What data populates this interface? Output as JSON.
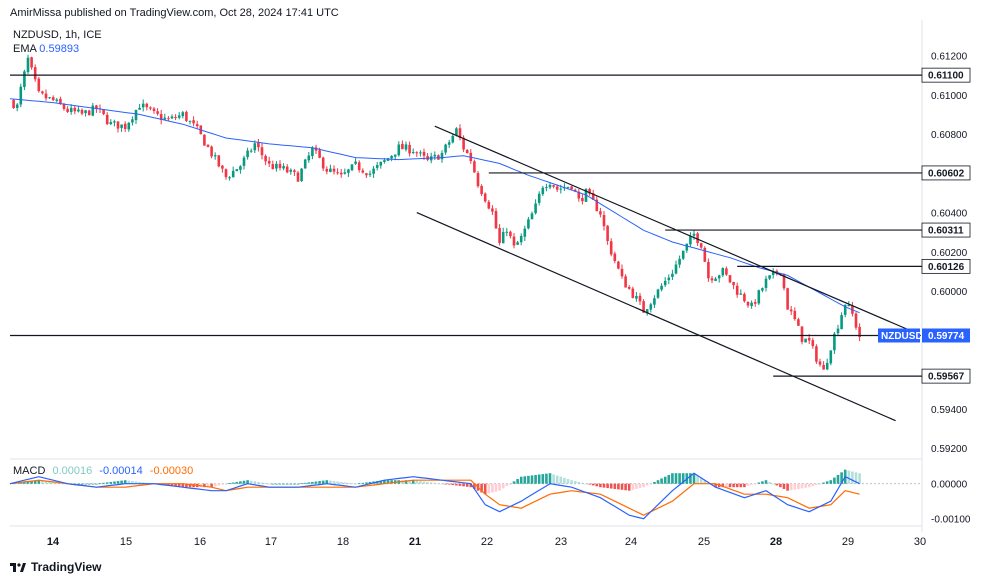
{
  "header": {
    "text": "AmirMissa published on TradingView.com, Oct 28, 2024 17:41 UTC"
  },
  "legend": {
    "symbol": "NZDUSD, 1h, ICE",
    "ema_label": "EMA",
    "ema_value": "0.59893"
  },
  "macd_legend": {
    "label": "MACD",
    "hist": "0.00016",
    "macd": "-0.00014",
    "signal": "-0.00030"
  },
  "footer": {
    "brand": "TradingView"
  },
  "colors": {
    "up": "#089981",
    "down": "#f23645",
    "ema": "#2962ff",
    "macd": "#2962ff",
    "signal": "#ff6d00",
    "hist_up": "#26a69a",
    "hist_down": "#ef5350"
  },
  "chart_data": {
    "type": "candlestick",
    "symbol": "NZDUSD",
    "timeframe": "1h",
    "x_ticks": [
      "14",
      "15",
      "16",
      "17",
      "18",
      "21",
      "22",
      "23",
      "24",
      "25",
      "28",
      "29",
      "30"
    ],
    "bold_ticks": [
      "14",
      "21",
      "28"
    ],
    "y_ticks": [
      "0.61200",
      "0.61000",
      "0.60800",
      "0.60400",
      "0.60200",
      "0.60000",
      "0.59400",
      "0.59200"
    ],
    "ylim": [
      0.5915,
      0.6133
    ],
    "price_path": [
      [
        0,
        0.6097
      ],
      [
        2,
        0.6094
      ],
      [
        3,
        0.6103
      ],
      [
        5,
        0.6118
      ],
      [
        6,
        0.6112
      ],
      [
        8,
        0.61
      ],
      [
        12,
        0.6097
      ],
      [
        16,
        0.6092
      ],
      [
        20,
        0.609
      ],
      [
        24,
        0.6093
      ],
      [
        28,
        0.6085
      ],
      [
        32,
        0.6084
      ],
      [
        36,
        0.6095
      ],
      [
        40,
        0.609
      ],
      [
        44,
        0.6087
      ],
      [
        48,
        0.609
      ],
      [
        52,
        0.6082
      ],
      [
        56,
        0.607
      ],
      [
        60,
        0.6058
      ],
      [
        64,
        0.6064
      ],
      [
        68,
        0.6075
      ],
      [
        72,
        0.6064
      ],
      [
        76,
        0.6062
      ],
      [
        80,
        0.6058
      ],
      [
        84,
        0.6072
      ],
      [
        88,
        0.6062
      ],
      [
        92,
        0.6058
      ],
      [
        96,
        0.6064
      ],
      [
        100,
        0.606
      ],
      [
        104,
        0.6066
      ],
      [
        108,
        0.6073
      ],
      [
        112,
        0.6072
      ],
      [
        116,
        0.6066
      ],
      [
        120,
        0.607
      ],
      [
        124,
        0.6082
      ],
      [
        126,
        0.6073
      ],
      [
        128,
        0.6067
      ],
      [
        130,
        0.6055
      ],
      [
        134,
        0.604
      ],
      [
        136,
        0.6024
      ],
      [
        138,
        0.6032
      ],
      [
        140,
        0.6022
      ],
      [
        142,
        0.6027
      ],
      [
        144,
        0.6035
      ],
      [
        146,
        0.6043
      ],
      [
        148,
        0.6054
      ],
      [
        150,
        0.6056
      ],
      [
        152,
        0.6052
      ],
      [
        156,
        0.6054
      ],
      [
        158,
        0.6046
      ],
      [
        160,
        0.605
      ],
      [
        164,
        0.604
      ],
      [
        166,
        0.6025
      ],
      [
        170,
        0.6006
      ],
      [
        174,
        0.5996
      ],
      [
        176,
        0.599
      ],
      [
        180,
        0.6
      ],
      [
        184,
        0.601
      ],
      [
        188,
        0.6023
      ],
      [
        190,
        0.6029
      ],
      [
        192,
        0.6024
      ],
      [
        194,
        0.6007
      ],
      [
        196,
        0.6008
      ],
      [
        198,
        0.601
      ],
      [
        202,
        0.6
      ],
      [
        206,
        0.5992
      ],
      [
        210,
        0.6005
      ],
      [
        214,
        0.6011
      ],
      [
        216,
        0.5992
      ],
      [
        218,
        0.5985
      ],
      [
        220,
        0.5976
      ],
      [
        222,
        0.5974
      ],
      [
        224,
        0.5966
      ],
      [
        226,
        0.5959
      ],
      [
        228,
        0.5972
      ],
      [
        230,
        0.5983
      ],
      [
        232,
        0.5994
      ],
      [
        234,
        0.5988
      ],
      [
        236,
        0.5977
      ]
    ],
    "ema_path": [
      [
        0,
        0.6098
      ],
      [
        12,
        0.6096
      ],
      [
        24,
        0.6093
      ],
      [
        36,
        0.609
      ],
      [
        48,
        0.6085
      ],
      [
        60,
        0.6078
      ],
      [
        72,
        0.6075
      ],
      [
        84,
        0.6073
      ],
      [
        96,
        0.6068
      ],
      [
        108,
        0.6067
      ],
      [
        120,
        0.6068
      ],
      [
        126,
        0.6069
      ],
      [
        136,
        0.6065
      ],
      [
        144,
        0.6059
      ],
      [
        152,
        0.6054
      ],
      [
        160,
        0.6049
      ],
      [
        168,
        0.604
      ],
      [
        176,
        0.6031
      ],
      [
        184,
        0.6025
      ],
      [
        192,
        0.6021
      ],
      [
        200,
        0.6017
      ],
      [
        208,
        0.6012
      ],
      [
        216,
        0.6008
      ],
      [
        224,
        0.6
      ],
      [
        232,
        0.5992
      ],
      [
        236,
        0.5989
      ]
    ],
    "horizontal_levels": [
      {
        "price": 0.611,
        "label": "0.61100",
        "start_x": 0
      },
      {
        "price": 0.60602,
        "label": "0.60602",
        "start_x": 133
      },
      {
        "price": 0.60311,
        "label": "0.60311",
        "start_x": 182
      },
      {
        "price": 0.60126,
        "label": "0.60126",
        "start_x": 202
      },
      {
        "price": 0.59774,
        "label": "0.59774",
        "start_x": 0
      },
      {
        "price": 0.59567,
        "label": "0.59567",
        "start_x": 212
      }
    ],
    "current_price": {
      "symbol": "NZDUSD",
      "label": "0.59774",
      "price": 0.59774
    },
    "channel": {
      "upper": [
        [
          118,
          0.6084
        ],
        [
          250,
          0.598
        ]
      ],
      "lower": [
        [
          113,
          0.604
        ],
        [
          246,
          0.5934
        ]
      ]
    },
    "macd": {
      "y_ticks": [
        "0.00000",
        "-0.00100"
      ],
      "ylim": [
        -0.00118,
        0.00062
      ],
      "macd_path": [
        [
          0,
          0.0
        ],
        [
          8,
          0.0002
        ],
        [
          16,
          0.0
        ],
        [
          24,
          -0.0001
        ],
        [
          32,
          0.0
        ],
        [
          40,
          0.0
        ],
        [
          48,
          -0.0001
        ],
        [
          56,
          -0.0002
        ],
        [
          60,
          -0.0002
        ],
        [
          66,
          0.0
        ],
        [
          72,
          -0.0001
        ],
        [
          80,
          -0.0001
        ],
        [
          88,
          0.0
        ],
        [
          96,
          -0.0001
        ],
        [
          104,
          0.0001
        ],
        [
          112,
          0.0002
        ],
        [
          120,
          0.0001
        ],
        [
          128,
          0.0
        ],
        [
          132,
          -0.0006
        ],
        [
          136,
          -0.0008
        ],
        [
          142,
          -0.0005
        ],
        [
          150,
          0.0
        ],
        [
          156,
          -0.0001
        ],
        [
          164,
          -0.0004
        ],
        [
          172,
          -0.0009
        ],
        [
          176,
          -0.001
        ],
        [
          184,
          -0.0002
        ],
        [
          190,
          0.0003
        ],
        [
          196,
          -0.0001
        ],
        [
          204,
          -0.0004
        ],
        [
          210,
          -0.0002
        ],
        [
          216,
          -0.0006
        ],
        [
          222,
          -0.0008
        ],
        [
          228,
          -0.0005
        ],
        [
          232,
          0.0002
        ],
        [
          236,
          0.0
        ]
      ],
      "signal_path": [
        [
          0,
          0.0
        ],
        [
          8,
          0.0001
        ],
        [
          16,
          0.0
        ],
        [
          24,
          -0.0001
        ],
        [
          32,
          -0.0001
        ],
        [
          40,
          0.0
        ],
        [
          48,
          0.0
        ],
        [
          56,
          -0.0001
        ],
        [
          60,
          -0.0002
        ],
        [
          66,
          -0.0001
        ],
        [
          72,
          -0.0001
        ],
        [
          80,
          -0.0001
        ],
        [
          88,
          -0.0001
        ],
        [
          96,
          -0.0001
        ],
        [
          104,
          0.0
        ],
        [
          112,
          0.0001
        ],
        [
          120,
          0.0001
        ],
        [
          128,
          0.0001
        ],
        [
          132,
          -0.0003
        ],
        [
          136,
          -0.0006
        ],
        [
          142,
          -0.0007
        ],
        [
          150,
          -0.0003
        ],
        [
          156,
          -0.0002
        ],
        [
          164,
          -0.0003
        ],
        [
          172,
          -0.0007
        ],
        [
          176,
          -0.0009
        ],
        [
          184,
          -0.0005
        ],
        [
          190,
          0.0
        ],
        [
          196,
          0.0
        ],
        [
          204,
          -0.0003
        ],
        [
          210,
          -0.0003
        ],
        [
          216,
          -0.0004
        ],
        [
          222,
          -0.0007
        ],
        [
          228,
          -0.0006
        ],
        [
          232,
          -0.0002
        ],
        [
          236,
          -0.0003
        ]
      ]
    }
  }
}
